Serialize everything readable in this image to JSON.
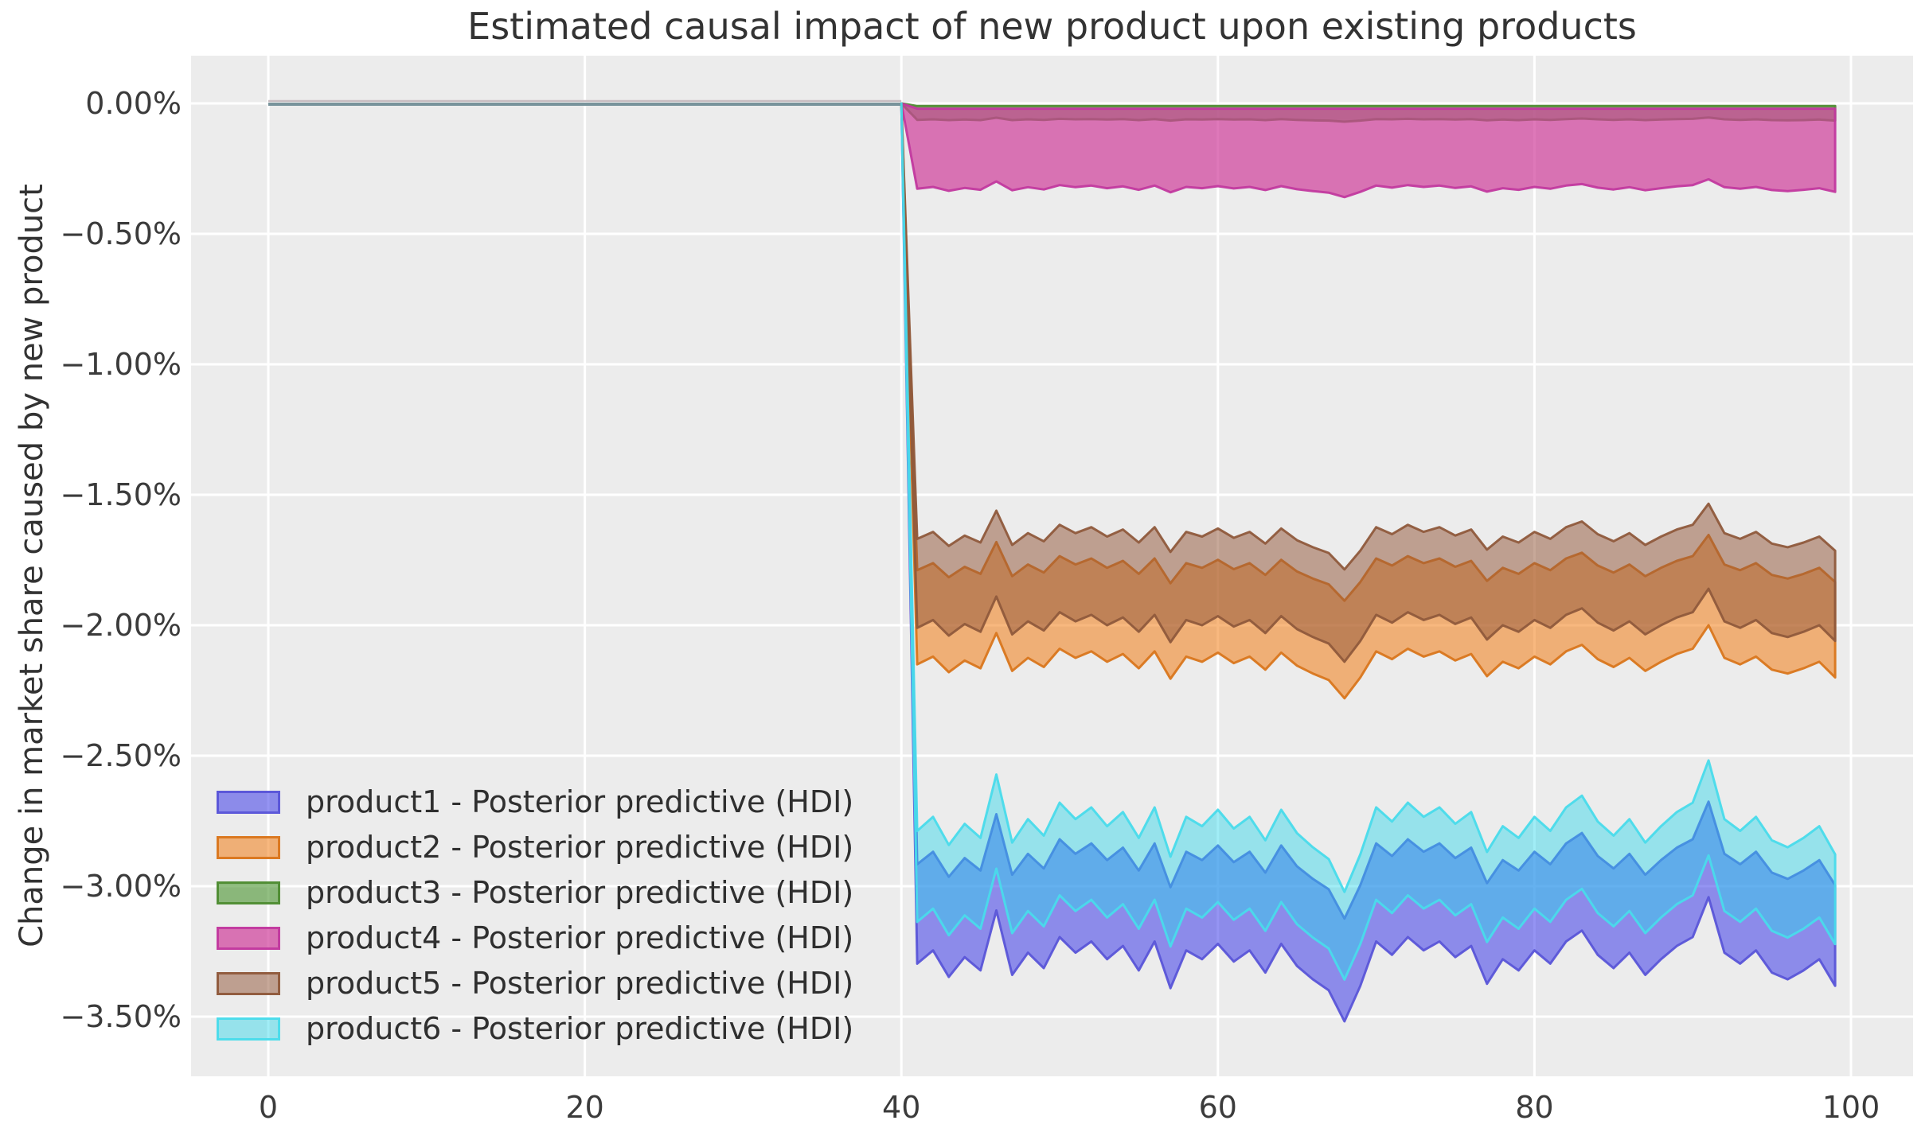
{
  "chart_data": {
    "type": "area",
    "title": "Estimated causal impact of new product upon existing products",
    "xlabel": "",
    "ylabel": "Change in market share caused by new product",
    "grid": true,
    "legend_position": "lower left",
    "axes_background": "#ececec",
    "grid_color": "#ffffff",
    "text_color": "#3b3b3b",
    "pre_period_line": {
      "x": [
        0,
        40
      ],
      "y_percent": 0,
      "color": "#78939b",
      "highlight_color": "#c7bcc0"
    },
    "intervention_x": 40,
    "x_axis": {
      "ticks": [
        0,
        20,
        40,
        60,
        80,
        100
      ],
      "labels": [
        "0",
        "20",
        "40",
        "60",
        "80",
        "100"
      ]
    },
    "y_axis": {
      "ticks": [
        0,
        -0.5,
        -1.0,
        -1.5,
        -2.0,
        -2.5,
        -3.0,
        -3.5
      ],
      "labels": [
        "0.00%",
        "−0.50%",
        "−1.00%",
        "−1.50%",
        "−2.00%",
        "−2.50%",
        "−3.00%",
        "−3.50%"
      ],
      "unit": "percent"
    },
    "xlim": [
      -4.95,
      103.95
    ],
    "ylim_percent": [
      -3.73,
      0.18
    ],
    "band_start_x": 40,
    "x": [
      41,
      42,
      43,
      44,
      45,
      46,
      47,
      48,
      49,
      50,
      51,
      52,
      53,
      54,
      55,
      56,
      57,
      58,
      59,
      60,
      61,
      62,
      63,
      64,
      65,
      66,
      67,
      68,
      69,
      70,
      71,
      72,
      73,
      74,
      75,
      76,
      77,
      78,
      79,
      80,
      81,
      82,
      83,
      84,
      85,
      86,
      87,
      88,
      89,
      90,
      91,
      92,
      93,
      94,
      95,
      96,
      97,
      98,
      99
    ],
    "series": [
      {
        "name": "product1",
        "label": "product1 - Posterior predictive (HDI)",
        "fill": "rgba(62,60,233,0.55)",
        "edge": "rgba(90,85,216,0.95)",
        "hi": [
          -2.916,
          -2.868,
          -2.964,
          -2.892,
          -2.94,
          -2.724,
          -2.956,
          -2.876,
          -2.932,
          -2.82,
          -2.876,
          -2.836,
          -2.9,
          -2.852,
          -2.94,
          -2.836,
          -3.004,
          -2.868,
          -2.9,
          -2.844,
          -2.908,
          -2.868,
          -2.948,
          -2.844,
          -2.924,
          -2.972,
          -3.012,
          -3.124,
          -2.996,
          -2.836,
          -2.884,
          -2.82,
          -2.868,
          -2.836,
          -2.892,
          -2.852,
          -2.988,
          -2.9,
          -2.94,
          -2.868,
          -2.916,
          -2.836,
          -2.796,
          -2.884,
          -2.932,
          -2.876,
          -2.956,
          -2.9,
          -2.852,
          -2.82,
          -2.676,
          -2.876,
          -2.916,
          -2.868,
          -2.948,
          -2.972,
          -2.94,
          -2.9,
          -2.996
        ],
        "lo": [
          -3.297,
          -3.246,
          -3.348,
          -3.272,
          -3.323,
          -3.093,
          -3.34,
          -3.255,
          -3.314,
          -3.195,
          -3.255,
          -3.212,
          -3.28,
          -3.229,
          -3.323,
          -3.212,
          -3.391,
          -3.246,
          -3.28,
          -3.221,
          -3.289,
          -3.246,
          -3.331,
          -3.221,
          -3.306,
          -3.357,
          -3.399,
          -3.518,
          -3.382,
          -3.212,
          -3.263,
          -3.195,
          -3.246,
          -3.212,
          -3.272,
          -3.229,
          -3.374,
          -3.28,
          -3.323,
          -3.246,
          -3.297,
          -3.212,
          -3.17,
          -3.263,
          -3.314,
          -3.255,
          -3.34,
          -3.28,
          -3.229,
          -3.195,
          -3.042,
          -3.255,
          -3.297,
          -3.246,
          -3.331,
          -3.357,
          -3.323,
          -3.28,
          -3.382
        ]
      },
      {
        "name": "product2",
        "label": "product2 - Posterior predictive (HDI)",
        "fill": "rgba(243,126,21,0.55)",
        "edge": "rgba(217,118,28,0.95)",
        "hi": [
          -1.789,
          -1.762,
          -1.816,
          -1.776,
          -1.803,
          -1.681,
          -1.812,
          -1.767,
          -1.798,
          -1.735,
          -1.767,
          -1.744,
          -1.78,
          -1.753,
          -1.803,
          -1.744,
          -1.839,
          -1.762,
          -1.78,
          -1.749,
          -1.785,
          -1.762,
          -1.807,
          -1.749,
          -1.794,
          -1.821,
          -1.843,
          -1.906,
          -1.834,
          -1.744,
          -1.771,
          -1.735,
          -1.762,
          -1.744,
          -1.776,
          -1.753,
          -1.83,
          -1.78,
          -1.803,
          -1.762,
          -1.789,
          -1.744,
          -1.722,
          -1.771,
          -1.798,
          -1.767,
          -1.812,
          -1.78,
          -1.753,
          -1.735,
          -1.654,
          -1.767,
          -1.789,
          -1.762,
          -1.807,
          -1.821,
          -1.803,
          -1.78,
          -1.834
        ],
        "lo": [
          -2.15,
          -2.12,
          -2.18,
          -2.135,
          -2.165,
          -2.03,
          -2.175,
          -2.125,
          -2.16,
          -2.09,
          -2.125,
          -2.1,
          -2.14,
          -2.11,
          -2.165,
          -2.1,
          -2.205,
          -2.12,
          -2.14,
          -2.105,
          -2.145,
          -2.12,
          -2.17,
          -2.105,
          -2.155,
          -2.185,
          -2.21,
          -2.28,
          -2.2,
          -2.1,
          -2.13,
          -2.09,
          -2.12,
          -2.1,
          -2.135,
          -2.11,
          -2.195,
          -2.14,
          -2.165,
          -2.12,
          -2.15,
          -2.1,
          -2.075,
          -2.13,
          -2.16,
          -2.125,
          -2.175,
          -2.14,
          -2.11,
          -2.09,
          -2.0,
          -2.125,
          -2.15,
          -2.12,
          -2.17,
          -2.185,
          -2.165,
          -2.14,
          -2.2
        ]
      },
      {
        "name": "product3",
        "label": "product3 - Posterior predictive (HDI)",
        "fill": "rgba(74,148,46,0.6)",
        "edge": "rgba(79,140,51,0.95)",
        "hi": -0.01,
        "lo": [
          -0.063,
          -0.061,
          -0.064,
          -0.062,
          -0.064,
          -0.055,
          -0.064,
          -0.061,
          -0.063,
          -0.059,
          -0.061,
          -0.06,
          -0.062,
          -0.06,
          -0.064,
          -0.06,
          -0.066,
          -0.061,
          -0.062,
          -0.06,
          -0.062,
          -0.061,
          -0.064,
          -0.06,
          -0.063,
          -0.065,
          -0.066,
          -0.07,
          -0.066,
          -0.06,
          -0.061,
          -0.059,
          -0.061,
          -0.06,
          -0.062,
          -0.06,
          -0.065,
          -0.062,
          -0.064,
          -0.061,
          -0.063,
          -0.06,
          -0.058,
          -0.061,
          -0.063,
          -0.061,
          -0.064,
          -0.062,
          -0.06,
          -0.059,
          -0.054,
          -0.061,
          -0.063,
          -0.061,
          -0.064,
          -0.065,
          -0.064,
          -0.062,
          -0.066
        ]
      },
      {
        "name": "product4",
        "label": "product4 - Posterior predictive (HDI)",
        "fill": "rgba(208,62,155,0.7)",
        "edge": "rgba(194,57,159,0.95)",
        "hi": -0.02,
        "lo": [
          -0.327,
          -0.32,
          -0.335,
          -0.324,
          -0.331,
          -0.299,
          -0.333,
          -0.321,
          -0.33,
          -0.313,
          -0.321,
          -0.315,
          -0.325,
          -0.318,
          -0.331,
          -0.315,
          -0.341,
          -0.32,
          -0.325,
          -0.317,
          -0.326,
          -0.32,
          -0.332,
          -0.317,
          -0.329,
          -0.336,
          -0.342,
          -0.359,
          -0.339,
          -0.315,
          -0.323,
          -0.313,
          -0.32,
          -0.315,
          -0.324,
          -0.318,
          -0.338,
          -0.325,
          -0.331,
          -0.32,
          -0.327,
          -0.315,
          -0.309,
          -0.323,
          -0.33,
          -0.321,
          -0.333,
          -0.325,
          -0.318,
          -0.313,
          -0.291,
          -0.321,
          -0.327,
          -0.32,
          -0.332,
          -0.336,
          -0.331,
          -0.325,
          -0.339
        ]
      },
      {
        "name": "product5",
        "label": "product5 - Posterior predictive (HDI)",
        "fill": "rgba(148,88,60,0.52)",
        "edge": "rgba(143,90,60,0.95)",
        "hi": [
          -1.669,
          -1.642,
          -1.696,
          -1.656,
          -1.683,
          -1.561,
          -1.692,
          -1.647,
          -1.678,
          -1.615,
          -1.647,
          -1.624,
          -1.66,
          -1.633,
          -1.683,
          -1.624,
          -1.719,
          -1.642,
          -1.66,
          -1.629,
          -1.665,
          -1.642,
          -1.687,
          -1.629,
          -1.674,
          -1.701,
          -1.723,
          -1.786,
          -1.714,
          -1.624,
          -1.651,
          -1.615,
          -1.642,
          -1.624,
          -1.656,
          -1.633,
          -1.71,
          -1.66,
          -1.683,
          -1.642,
          -1.669,
          -1.624,
          -1.602,
          -1.651,
          -1.678,
          -1.647,
          -1.692,
          -1.66,
          -1.633,
          -1.615,
          -1.534,
          -1.647,
          -1.669,
          -1.642,
          -1.687,
          -1.701,
          -1.683,
          -1.66,
          -1.714
        ],
        "lo": [
          -2.01,
          -1.98,
          -2.04,
          -1.995,
          -2.025,
          -1.89,
          -2.035,
          -1.985,
          -2.02,
          -1.95,
          -1.985,
          -1.96,
          -2.0,
          -1.97,
          -2.025,
          -1.96,
          -2.065,
          -1.98,
          -2.0,
          -1.965,
          -2.005,
          -1.98,
          -2.03,
          -1.965,
          -2.015,
          -2.045,
          -2.07,
          -2.14,
          -2.06,
          -1.96,
          -1.99,
          -1.95,
          -1.98,
          -1.96,
          -1.995,
          -1.97,
          -2.055,
          -2.0,
          -2.025,
          -1.98,
          -2.01,
          -1.96,
          -1.935,
          -1.99,
          -2.02,
          -1.985,
          -2.035,
          -2.0,
          -1.97,
          -1.95,
          -1.86,
          -1.985,
          -2.01,
          -1.98,
          -2.03,
          -2.045,
          -2.025,
          -2.0,
          -2.06
        ]
      },
      {
        "name": "product6",
        "label": "product6 - Posterior predictive (HDI)",
        "fill": "rgba(40,213,234,0.44)",
        "edge": "rgba(73,219,235,0.95)",
        "hi": [
          -2.788,
          -2.734,
          -2.842,
          -2.761,
          -2.815,
          -2.572,
          -2.833,
          -2.743,
          -2.806,
          -2.68,
          -2.743,
          -2.698,
          -2.77,
          -2.716,
          -2.815,
          -2.698,
          -2.887,
          -2.734,
          -2.77,
          -2.707,
          -2.779,
          -2.734,
          -2.824,
          -2.707,
          -2.797,
          -2.851,
          -2.896,
          -3.022,
          -2.878,
          -2.698,
          -2.752,
          -2.68,
          -2.734,
          -2.698,
          -2.761,
          -2.716,
          -2.869,
          -2.77,
          -2.815,
          -2.734,
          -2.788,
          -2.698,
          -2.653,
          -2.752,
          -2.806,
          -2.743,
          -2.833,
          -2.77,
          -2.716,
          -2.68,
          -2.518,
          -2.743,
          -2.788,
          -2.734,
          -2.824,
          -2.851,
          -2.815,
          -2.77,
          -2.878
        ],
        "lo": [
          -3.137,
          -3.086,
          -3.188,
          -3.112,
          -3.163,
          -2.933,
          -3.18,
          -3.095,
          -3.154,
          -3.035,
          -3.095,
          -3.052,
          -3.12,
          -3.069,
          -3.163,
          -3.052,
          -3.231,
          -3.086,
          -3.12,
          -3.061,
          -3.129,
          -3.086,
          -3.171,
          -3.061,
          -3.146,
          -3.197,
          -3.239,
          -3.358,
          -3.222,
          -3.052,
          -3.103,
          -3.035,
          -3.086,
          -3.052,
          -3.112,
          -3.069,
          -3.214,
          -3.12,
          -3.163,
          -3.086,
          -3.137,
          -3.052,
          -3.01,
          -3.103,
          -3.154,
          -3.095,
          -3.18,
          -3.12,
          -3.069,
          -3.035,
          -2.882,
          -3.095,
          -3.137,
          -3.086,
          -3.171,
          -3.197,
          -3.163,
          -3.12,
          -3.222
        ]
      }
    ]
  }
}
